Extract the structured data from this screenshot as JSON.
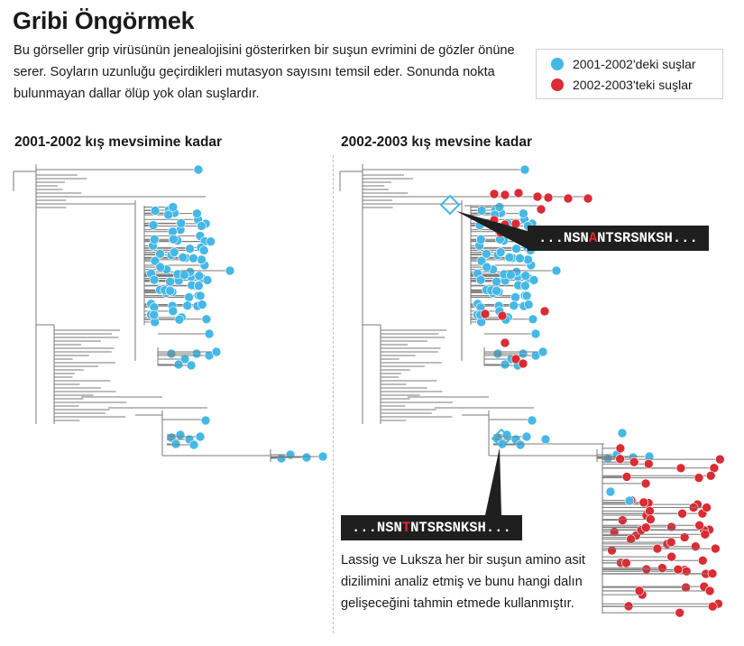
{
  "header": {
    "title": "Gribi Öngörmek",
    "intro": "Bu görseller grip virüsünün jenealojisini gösterirken bir suşun evrimini de gözler önüne serer. Soyların uzunluğu geçirdikleri mutasyon sayısını temsil eder. Sonunda nokta bulunmayan dallar ölüp yok olan suşlardır."
  },
  "legend": {
    "items": [
      {
        "label": "2001-2002'deki suşlar",
        "color": "#45b8e6"
      },
      {
        "label": "2002-2003'teki suşlar",
        "color": "#d92c34"
      }
    ]
  },
  "panels": {
    "left_title": "2001-2002 kış mevsimine kadar",
    "right_title": "2002-2003 kış mevsine kadar"
  },
  "callouts": {
    "top": {
      "before": "...NSN",
      "highlight": "A",
      "after": "NTSRSNKSH..."
    },
    "bottom": {
      "before": "...NSN",
      "highlight": "T",
      "after": "NTSRSNKSH..."
    }
  },
  "caption": "Lassig ve Luksza her bir suşun amino asit dizilimini analiz etmiş ve bunu hangi dalın gelişeceğini tahmin etmede kullanmıştır.",
  "colors": {
    "blue_strain": "#45b8e6",
    "red_strain": "#d92c34",
    "branch_line": "#7a7a7a",
    "callout_bg": "#1f1f1f",
    "marker_diamond": "#45b8e6"
  }
}
